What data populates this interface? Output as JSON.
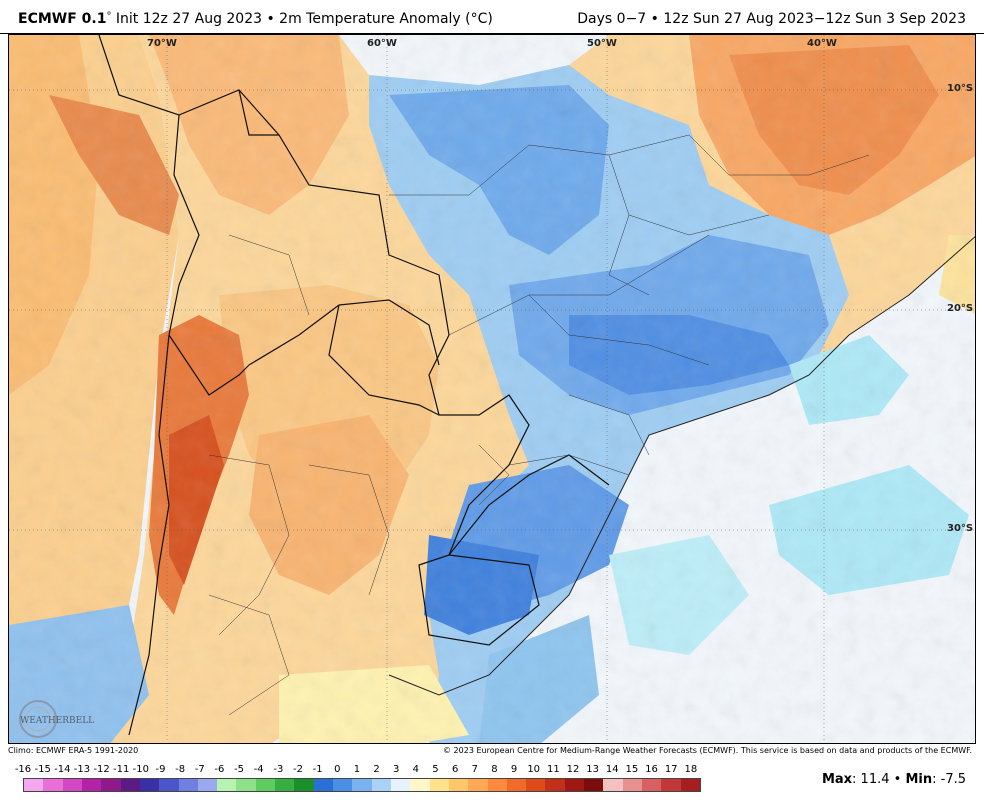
{
  "header": {
    "model": "ECMWF 0.1",
    "deg": "°",
    "left_rest": " Init 12z 27 Aug 2023 • 2m Temperature Anomaly (°C)",
    "right": "Days 0−7 • 12z Sun 27 Aug 2023−12z Sun 3 Sep 2023"
  },
  "map": {
    "lon_labels": [
      "70°W",
      "60°W",
      "50°W",
      "40°W"
    ],
    "lat_labels": [
      "10°S",
      "20°S",
      "30°S"
    ],
    "logo_text": "WEATHERBELL"
  },
  "credits": {
    "left": "Climo: ECMWF ERA-5 1991-2020",
    "right": "© 2023 European Centre for Medium-Range Weather Forecasts (ECMWF). This service is based on data and products of the ECMWF."
  },
  "colorbar": {
    "labels": [
      "-16",
      "-15",
      "-14",
      "-13",
      "-12",
      "-11",
      "-10",
      "-9",
      "-8",
      "-7",
      "-6",
      "-5",
      "-4",
      "-3",
      "-2",
      "-1",
      "0",
      "1",
      "2",
      "3",
      "4",
      "5",
      "6",
      "7",
      "8",
      "9",
      "10",
      "11",
      "12",
      "13",
      "14",
      "15",
      "16",
      "17",
      "18"
    ],
    "colors": [
      "#f5a8f0",
      "#e86fd8",
      "#d247c3",
      "#b323a8",
      "#8e1a8c",
      "#5c1a86",
      "#3b2fa8",
      "#4a55c9",
      "#6f80e0",
      "#9aa8ef",
      "#b8f2b0",
      "#8fe08a",
      "#5fcc60",
      "#35b040",
      "#1a8f2a",
      "#2a6fd6",
      "#4a8fe6",
      "#7ab2f0",
      "#a9d2f8",
      "#e6f3ff",
      "#fff7c8",
      "#ffe28a",
      "#ffc76a",
      "#ffa855",
      "#ff8a3d",
      "#f26a28",
      "#de4a1a",
      "#c2301a",
      "#a01814",
      "#7a0c0c",
      "#f4c0c0",
      "#e89090",
      "#d86060",
      "#c23838",
      "#a81e1e"
    ]
  },
  "stats": {
    "max_label": "Max",
    "max_value": ": 11.4 •",
    "min_label": "Min",
    "min_value": ": -7.5"
  },
  "colors": {
    "ocean_pale": "#f2f7fc",
    "warm_land": "#fbc27a",
    "cool_land": "#5fa1ee",
    "hot_andes": "#d7501e"
  }
}
